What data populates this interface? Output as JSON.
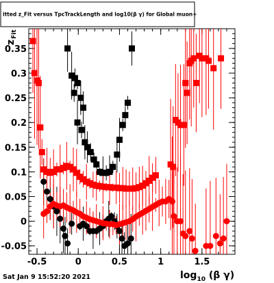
{
  "title": "itted  z_Fit versus TpcTrackLength and log10(β γ) for Global muon+",
  "timestamp": "Sat Jan  9 15:52:20 2021",
  "chart_data": {
    "type": "scatter",
    "title": "itted  z_Fit versus TpcTrackLength and log10(β γ) for Global muon+",
    "xlabel": "log10(β γ)",
    "ylabel": "z_Fit",
    "xlim": [
      -0.6,
      1.9
    ],
    "ylim": [
      -0.067,
      0.39
    ],
    "x_ticks": [
      -0.5,
      0,
      0.5,
      1,
      1.5
    ],
    "x_tick_labels": [
      "-0.5",
      "0",
      "0.5",
      "1",
      "1.5"
    ],
    "y_ticks": [
      -0.05,
      0,
      0.05,
      0.1,
      0.15,
      0.2,
      0.25,
      0.3,
      0.35
    ],
    "y_tick_labels": [
      "-0.05",
      "0",
      "0.05",
      "0.1",
      "0.15",
      "0.2",
      "0.25",
      "0.3",
      "0.35"
    ],
    "grid": false,
    "colors": {
      "black": "#000000",
      "red": "#ff0000"
    },
    "series": [
      {
        "color": "#000000",
        "marker": "square",
        "points": [
          [
            -0.13,
            0.35
          ],
          [
            -0.08,
            0.295
          ],
          [
            -0.04,
            0.29
          ],
          [
            -0.01,
            0.28
          ],
          [
            -0.05,
            0.26
          ],
          [
            0.03,
            0.25
          ],
          [
            0.06,
            0.23
          ],
          [
            -0.01,
            0.2
          ],
          [
            0.04,
            0.185
          ],
          [
            0.08,
            0.16
          ],
          [
            0.11,
            0.15
          ],
          [
            0.15,
            0.14
          ],
          [
            0.19,
            0.125
          ],
          [
            0.22,
            0.115
          ],
          [
            0.26,
            0.1
          ],
          [
            0.3,
            0.098
          ],
          [
            0.34,
            0.098
          ],
          [
            0.38,
            0.1
          ],
          [
            0.42,
            0.11
          ],
          [
            0.47,
            0.135
          ],
          [
            0.5,
            0.165
          ],
          [
            0.54,
            0.195
          ],
          [
            0.57,
            0.215
          ],
          [
            0.6,
            0.24
          ],
          [
            0.65,
            0.35
          ]
        ]
      },
      {
        "color": "#000000",
        "marker": "circle",
        "points": [
          [
            -0.42,
            0.08
          ],
          [
            -0.38,
            0.06
          ],
          [
            -0.34,
            0.045
          ],
          [
            -0.3,
            0.03
          ],
          [
            -0.26,
            0.02
          ],
          [
            -0.22,
            0.005
          ],
          [
            -0.18,
            -0.015
          ],
          [
            -0.16,
            -0.03
          ],
          [
            -0.13,
            -0.045
          ],
          [
            -0.08,
            -0.005
          ],
          [
            0.02,
            -0.01
          ],
          [
            0.06,
            -0.005
          ],
          [
            0.1,
            -0.01
          ],
          [
            0.14,
            -0.02
          ],
          [
            0.18,
            -0.02
          ],
          [
            0.22,
            -0.02
          ],
          [
            0.26,
            -0.015
          ],
          [
            0.3,
            -0.01
          ],
          [
            0.34,
            0.0
          ],
          [
            0.37,
            0.005
          ],
          [
            0.4,
            0.01
          ],
          [
            0.44,
            0.0
          ],
          [
            0.47,
            -0.01
          ],
          [
            0.5,
            -0.02
          ],
          [
            0.53,
            -0.035
          ],
          [
            0.56,
            -0.05
          ],
          [
            0.6,
            -0.045
          ],
          [
            0.64,
            -0.035
          ]
        ]
      },
      {
        "color": "#ff0000",
        "marker": "square",
        "points": [
          [
            -0.55,
            0.365
          ],
          [
            -0.53,
            0.3
          ],
          [
            -0.5,
            0.285
          ],
          [
            -0.48,
            0.28
          ],
          [
            -0.46,
            0.19
          ],
          [
            -0.44,
            0.14
          ],
          [
            -0.42,
            0.105
          ],
          [
            -0.38,
            0.1
          ],
          [
            -0.34,
            0.098
          ],
          [
            -0.3,
            0.1
          ],
          [
            -0.26,
            0.105
          ],
          [
            -0.22,
            0.105
          ],
          [
            -0.18,
            0.108
          ],
          [
            -0.14,
            0.112
          ],
          [
            -0.1,
            0.11
          ],
          [
            -0.06,
            0.105
          ],
          [
            -0.02,
            0.098
          ],
          [
            0.02,
            0.09
          ],
          [
            0.06,
            0.085
          ],
          [
            0.1,
            0.08
          ],
          [
            0.14,
            0.077
          ],
          [
            0.18,
            0.074
          ],
          [
            0.22,
            0.072
          ],
          [
            0.26,
            0.071
          ],
          [
            0.3,
            0.07
          ],
          [
            0.34,
            0.069
          ],
          [
            0.38,
            0.069
          ],
          [
            0.42,
            0.068
          ],
          [
            0.46,
            0.068
          ],
          [
            0.5,
            0.067
          ],
          [
            0.54,
            0.067
          ],
          [
            0.58,
            0.066
          ],
          [
            0.62,
            0.066
          ],
          [
            0.66,
            0.066
          ],
          [
            0.7,
            0.067
          ],
          [
            0.74,
            0.069
          ],
          [
            0.78,
            0.072
          ],
          [
            0.82,
            0.077
          ],
          [
            0.86,
            0.082
          ],
          [
            0.9,
            0.088
          ],
          [
            0.94,
            0.093
          ],
          [
            1.12,
            0.115
          ],
          [
            1.15,
            0.11
          ],
          [
            1.18,
            0.205
          ],
          [
            1.21,
            0.2
          ],
          [
            1.24,
            0.195
          ],
          [
            1.28,
            0.195
          ],
          [
            1.3,
            0.28
          ],
          [
            1.32,
            0.26
          ],
          [
            1.35,
            0.32
          ],
          [
            1.37,
            0.325
          ],
          [
            1.4,
            0.33
          ],
          [
            1.43,
            0.28
          ],
          [
            1.47,
            0.335
          ],
          [
            1.5,
            0.33
          ],
          [
            1.55,
            0.33
          ],
          [
            1.58,
            0.325
          ],
          [
            1.64,
            0.31
          ],
          [
            1.73,
            0.33
          ]
        ]
      },
      {
        "color": "#ff0000",
        "marker": "circle",
        "points": [
          [
            -0.42,
            0.015
          ],
          [
            -0.38,
            0.02
          ],
          [
            -0.34,
            0.03
          ],
          [
            -0.3,
            0.035
          ],
          [
            -0.26,
            0.032
          ],
          [
            -0.22,
            0.03
          ],
          [
            -0.18,
            0.032
          ],
          [
            -0.14,
            0.028
          ],
          [
            -0.1,
            0.025
          ],
          [
            -0.06,
            0.022
          ],
          [
            -0.02,
            0.018
          ],
          [
            0.02,
            0.015
          ],
          [
            0.06,
            0.01
          ],
          [
            0.1,
            0.007
          ],
          [
            0.14,
            0.004
          ],
          [
            0.18,
            0.002
          ],
          [
            0.22,
            0.0
          ],
          [
            0.26,
            -0.002
          ],
          [
            0.3,
            -0.004
          ],
          [
            0.34,
            -0.005
          ],
          [
            0.38,
            -0.006
          ],
          [
            0.42,
            -0.006
          ],
          [
            0.46,
            -0.008
          ],
          [
            0.5,
            -0.006
          ],
          [
            0.54,
            -0.004
          ],
          [
            0.58,
            -0.002
          ],
          [
            0.62,
            0.0
          ],
          [
            0.66,
            0.004
          ],
          [
            0.7,
            0.009
          ],
          [
            0.74,
            0.013
          ],
          [
            0.78,
            0.017
          ],
          [
            0.82,
            0.021
          ],
          [
            0.86,
            0.025
          ],
          [
            0.9,
            0.029
          ],
          [
            0.94,
            0.033
          ],
          [
            0.98,
            0.037
          ],
          [
            1.02,
            0.04
          ],
          [
            1.06,
            0.04
          ],
          [
            1.1,
            0.045
          ],
          [
            1.14,
            0.04
          ],
          [
            1.16,
            0.01
          ],
          [
            1.2,
            0.0
          ],
          [
            1.24,
            0.0
          ],
          [
            1.27,
            -0.025
          ],
          [
            1.3,
            -0.03
          ],
          [
            1.35,
            -0.02
          ],
          [
            1.38,
            -0.035
          ],
          [
            1.42,
            -0.06
          ],
          [
            1.55,
            -0.05
          ],
          [
            1.6,
            -0.05
          ],
          [
            1.67,
            -0.03
          ],
          [
            1.72,
            -0.045
          ],
          [
            1.76,
            -0.035
          ],
          [
            1.8,
            0.0
          ]
        ]
      }
    ]
  }
}
